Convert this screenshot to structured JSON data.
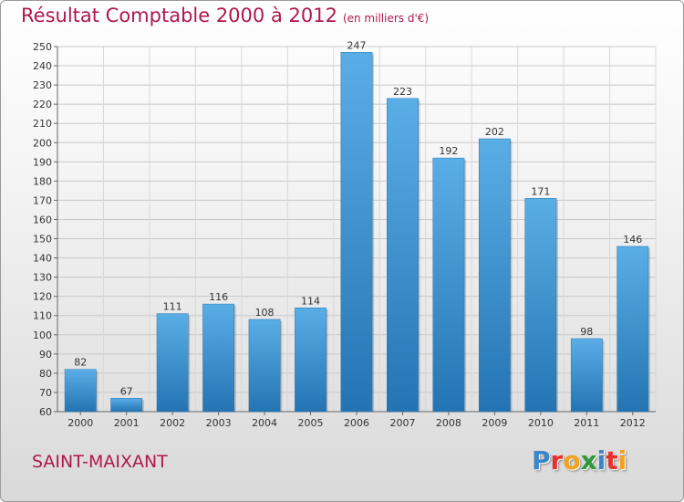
{
  "page": {
    "title": "Résultat Comptable 2000 à 2012",
    "subtitle": "(en milliers d'€)",
    "commune": "SAINT-MAIXANT",
    "logo_letters": [
      "P",
      "r",
      "o",
      "x",
      "i",
      "t",
      "i"
    ],
    "logo_colors": [
      "#3a86c8",
      "#e8312f",
      "#f4a21d",
      "#2f9a3a",
      "#3a86c8",
      "#e8312f",
      "#f4a21d"
    ],
    "title_color": "#b0174c"
  },
  "chart_data": {
    "type": "bar",
    "title": "Résultat Comptable 2000 à 2012",
    "subtitle": "(en milliers d'€)",
    "categories": [
      "2000",
      "2001",
      "2002",
      "2003",
      "2004",
      "2005",
      "2006",
      "2007",
      "2008",
      "2009",
      "2010",
      "2011",
      "2012"
    ],
    "values": [
      82,
      67,
      111,
      116,
      108,
      114,
      247,
      223,
      192,
      202,
      171,
      98,
      146
    ],
    "value_labels": [
      "82",
      "67",
      "111",
      "116",
      "108",
      "114",
      "247",
      "223",
      "192",
      "202",
      "171",
      "98",
      "146"
    ],
    "ylim": [
      60,
      250
    ],
    "yticks": [
      60,
      70,
      80,
      90,
      100,
      110,
      120,
      130,
      140,
      150,
      160,
      170,
      180,
      190,
      200,
      210,
      220,
      230,
      240,
      250
    ],
    "ytick_labels": [
      "60",
      "70",
      "80",
      "90",
      "100",
      "110",
      "120",
      "130",
      "140",
      "150",
      "160",
      "170",
      "180",
      "190",
      "200",
      "210",
      "220",
      "230",
      "240",
      "250"
    ],
    "xlabel": "",
    "ylabel": "",
    "grid": true,
    "bar_color": "#3d92d4",
    "bar_color_light": "#5aaee6",
    "bar_color_dark": "#2474b3"
  }
}
